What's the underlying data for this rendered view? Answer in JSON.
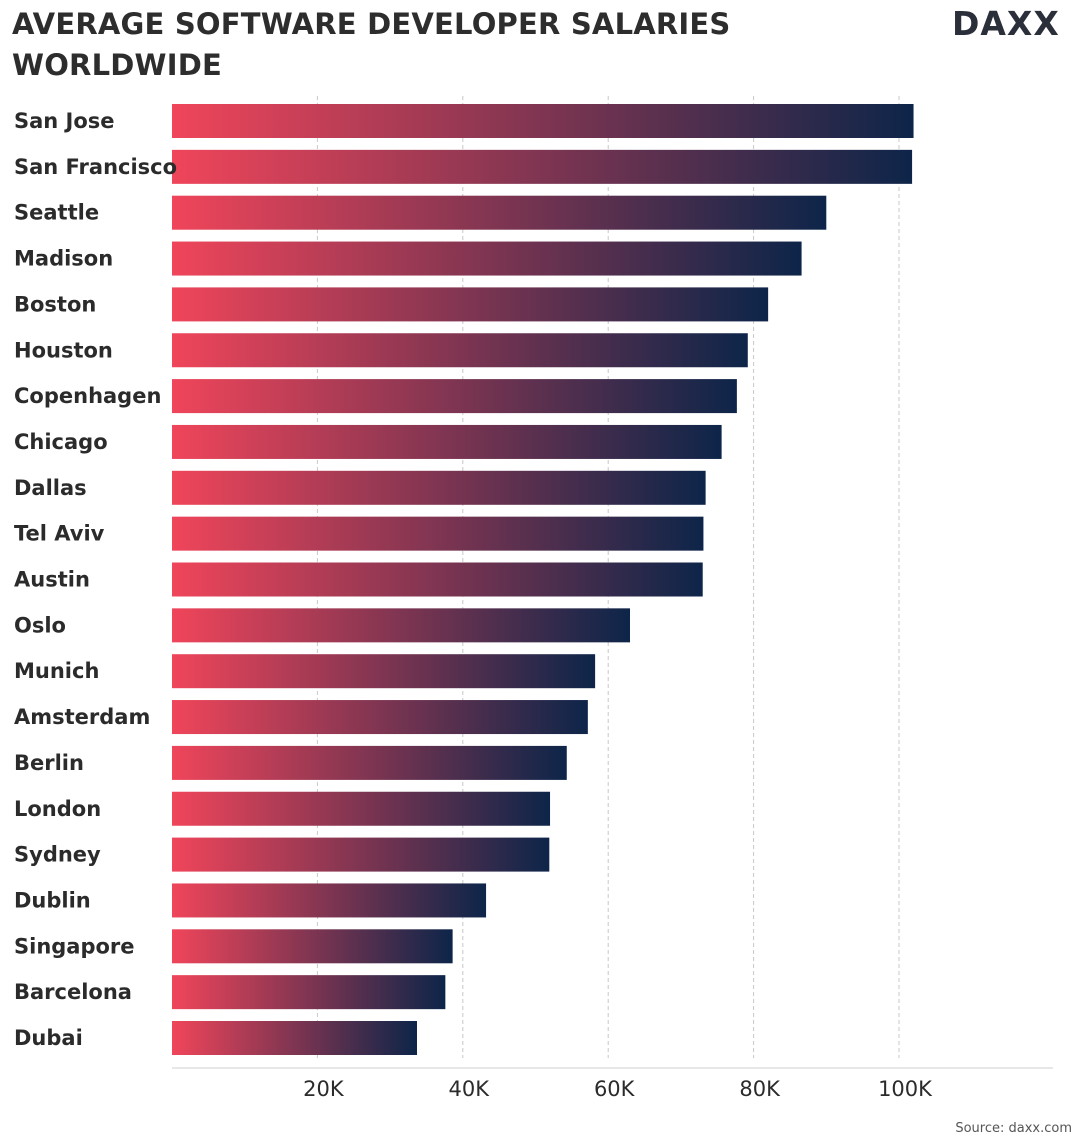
{
  "header": {
    "title": "AVERAGE SOFTWARE DEVELOPER SALARIES WORLDWIDE",
    "logo_text": "DAXX"
  },
  "footer": {
    "source": "Source: daxx.com"
  },
  "colors": {
    "bar_start": "#f0455a",
    "bar_end": "#0d2549",
    "grid": "#c8c8c8",
    "label": "#2b2b2b",
    "logo_accent": "#f5b400"
  },
  "chart_data": {
    "type": "bar",
    "orientation": "horizontal",
    "categories": [
      "San Jose",
      "San Francisco",
      "Seattle",
      "Madison",
      "Boston",
      "Houston",
      "Copenhagen",
      "Chicago",
      "Dallas",
      "Tel Aviv",
      "Austin",
      "Oslo",
      "Munich",
      "Amsterdam",
      "Berlin",
      "London",
      "Sydney",
      "Dublin",
      "Singapore",
      "Barcelona",
      "Dubai"
    ],
    "values": [
      102000,
      101800,
      90000,
      86600,
      82000,
      79200,
      77700,
      75600,
      73400,
      73100,
      73000,
      63000,
      58200,
      57200,
      54300,
      52000,
      51900,
      43200,
      38600,
      37600,
      33700
    ],
    "xticks": [
      20000,
      40000,
      60000,
      80000,
      100000
    ],
    "xtick_labels": [
      "20K",
      "40K",
      "60K",
      "80K",
      "100K"
    ],
    "xlim": [
      0,
      121000
    ],
    "grid": "vertical dashed",
    "title": "AVERAGE SOFTWARE DEVELOPER SALARIES WORLDWIDE",
    "xlabel": "",
    "ylabel": ""
  }
}
